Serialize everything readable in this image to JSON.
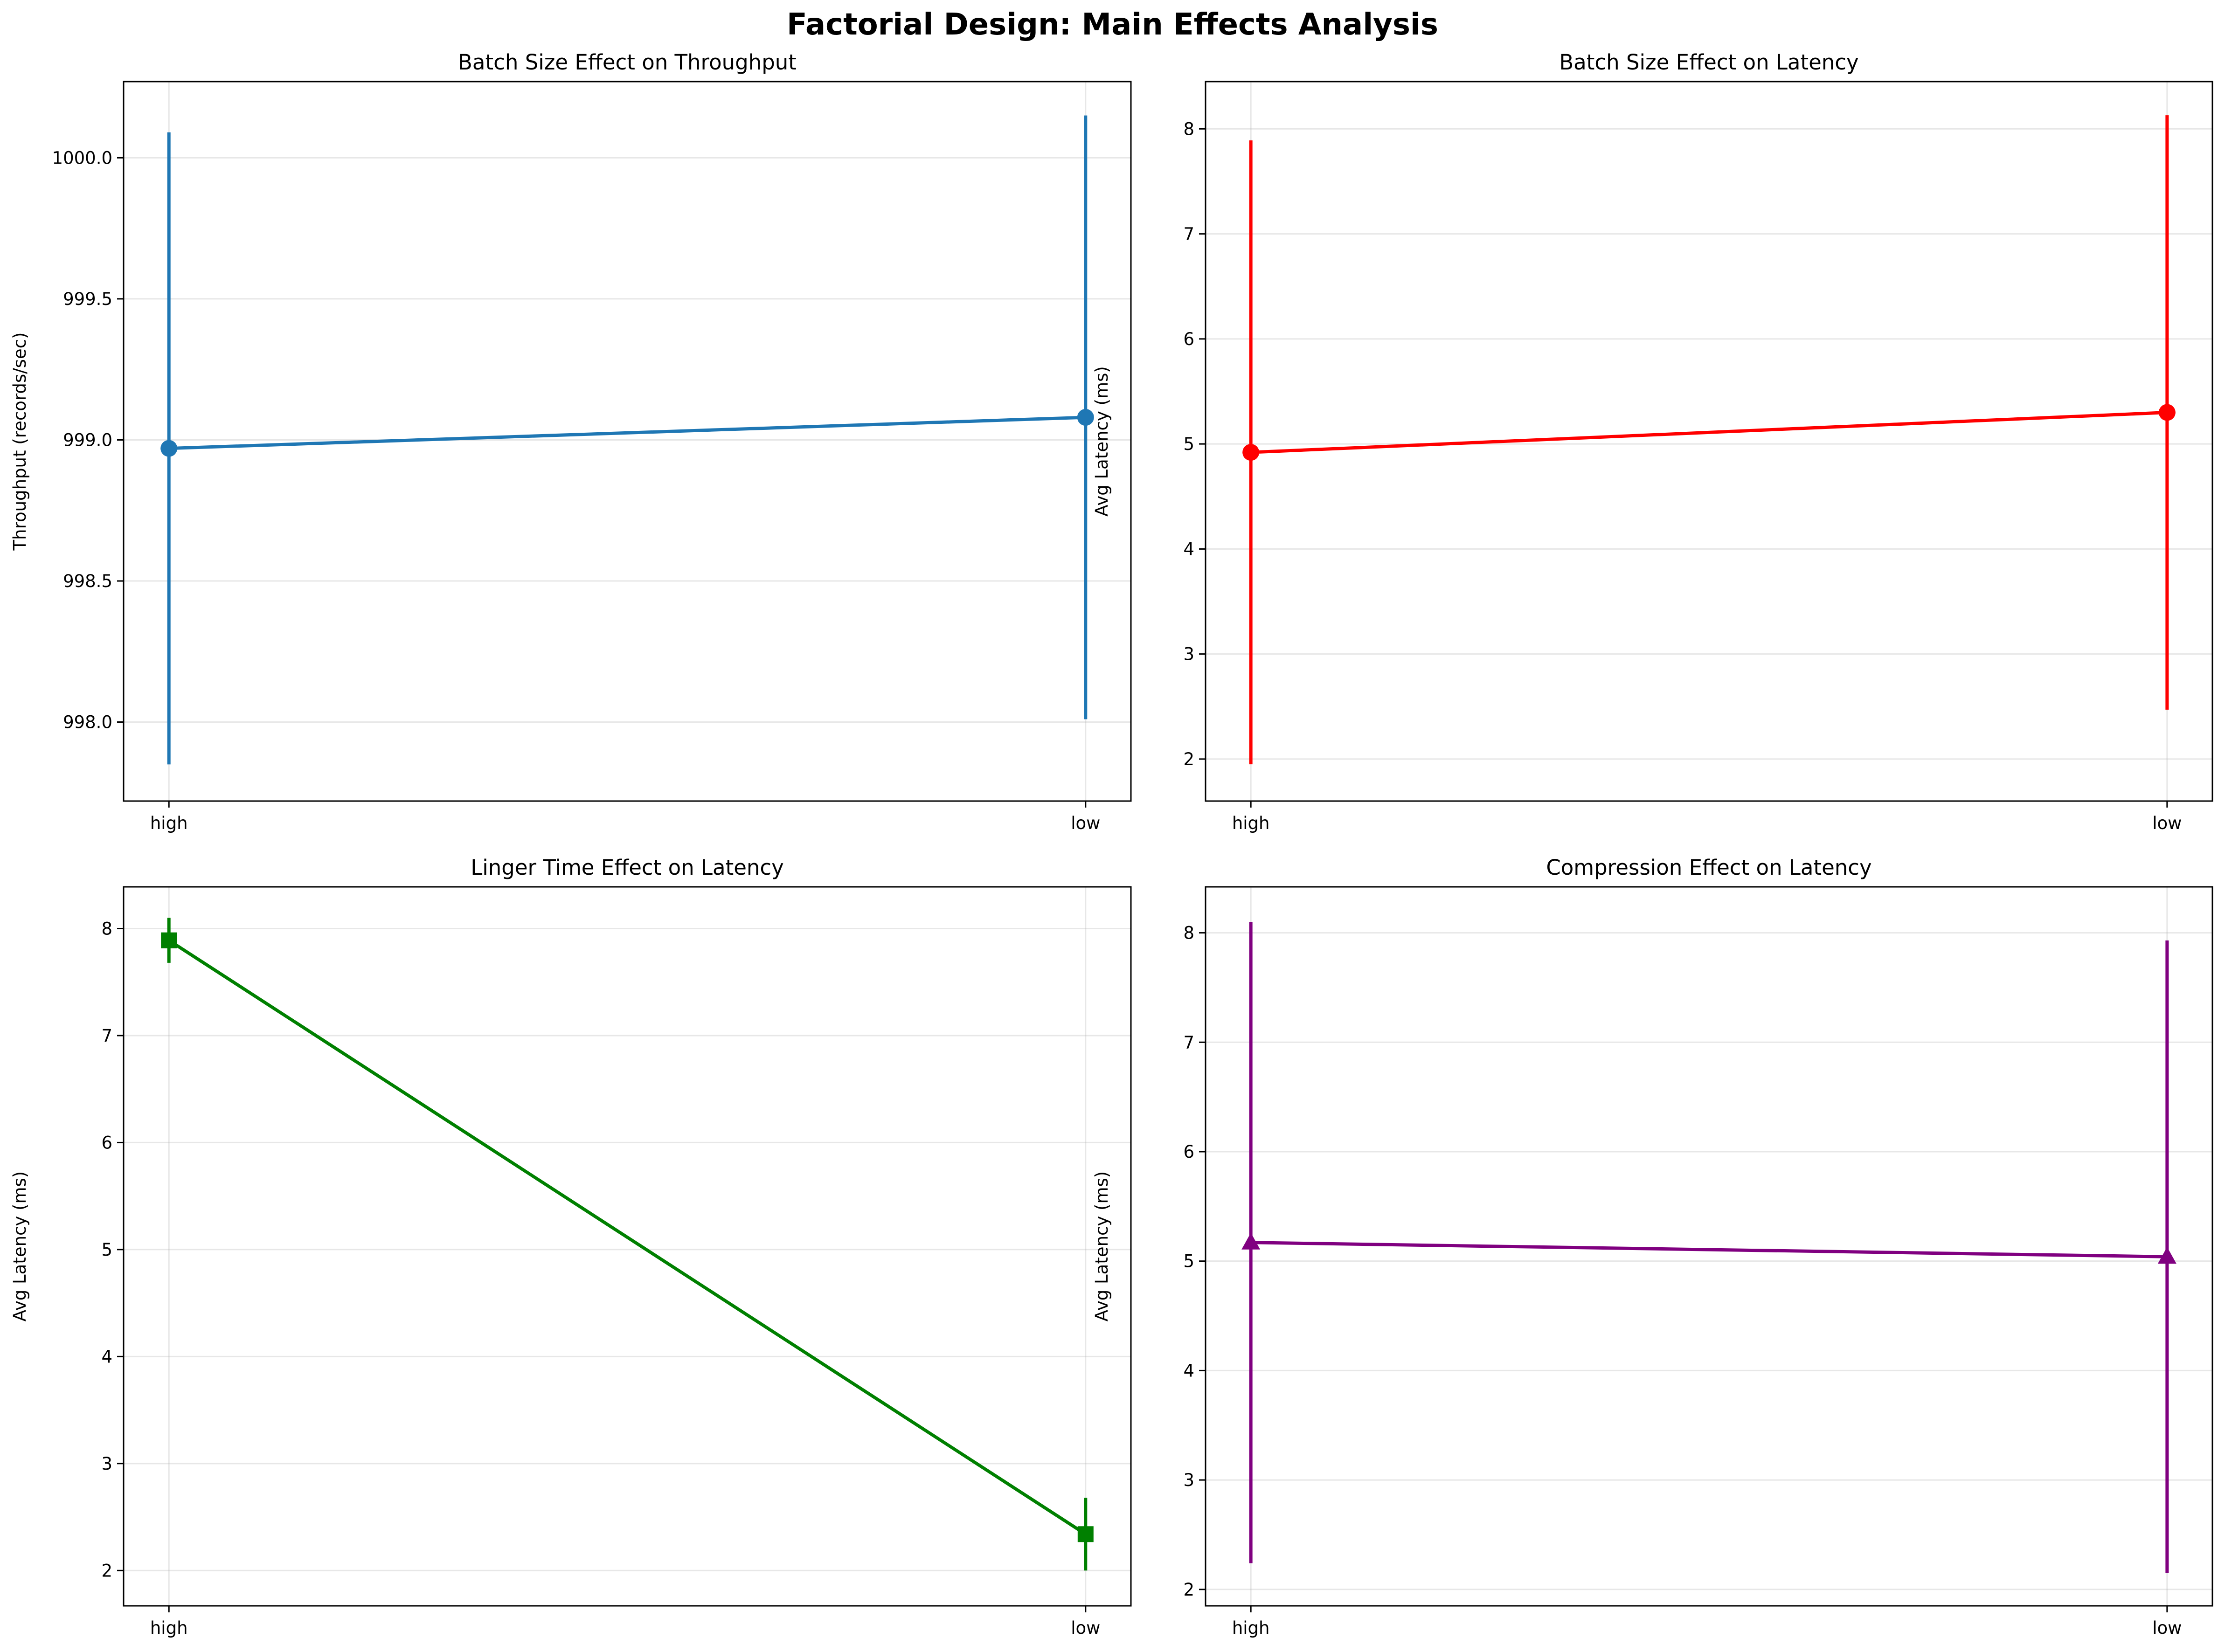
{
  "figure": {
    "title": "Factorial Design: Main Effects Analysis"
  },
  "chart_data": [
    {
      "type": "line",
      "title": "Batch Size Effect on Throughput",
      "xlabel": "",
      "ylabel": "Throughput (records/sec)",
      "categories": [
        "high",
        "low"
      ],
      "ylim": [
        997.72,
        1000.27
      ],
      "yticks": [
        998.0,
        998.5,
        999.0,
        999.5,
        1000.0
      ],
      "ytick_labels": [
        "998.0",
        "998.5",
        "999.0",
        "999.5",
        "1000.0"
      ],
      "grid": true,
      "color": "#1f77b4",
      "marker": "circle",
      "series": [
        {
          "values": [
            998.97,
            999.08
          ],
          "errors": [
            1.12,
            1.07
          ]
        }
      ]
    },
    {
      "type": "line",
      "title": "Batch Size Effect on Latency",
      "xlabel": "",
      "ylabel": "Avg Latency (ms)",
      "categories": [
        "high",
        "low"
      ],
      "ylim": [
        1.6,
        8.45
      ],
      "yticks": [
        2,
        3,
        4,
        5,
        6,
        7,
        8
      ],
      "ytick_labels": [
        "2",
        "3",
        "4",
        "5",
        "6",
        "7",
        "8"
      ],
      "grid": true,
      "color": "#ff0000",
      "marker": "circle",
      "series": [
        {
          "values": [
            4.92,
            5.3
          ],
          "errors": [
            2.97,
            2.83
          ]
        }
      ]
    },
    {
      "type": "line",
      "title": "Linger Time Effect on Latency",
      "xlabel": "",
      "ylabel": "Avg Latency (ms)",
      "categories": [
        "high",
        "low"
      ],
      "ylim": [
        1.67,
        8.39
      ],
      "yticks": [
        2,
        3,
        4,
        5,
        6,
        7,
        8
      ],
      "ytick_labels": [
        "2",
        "3",
        "4",
        "5",
        "6",
        "7",
        "8"
      ],
      "grid": true,
      "color": "#008000",
      "marker": "square",
      "series": [
        {
          "values": [
            7.89,
            2.34
          ],
          "errors": [
            0.21,
            0.34
          ]
        }
      ]
    },
    {
      "type": "line",
      "title": "Compression Effect on Latency",
      "xlabel": "",
      "ylabel": "Avg Latency (ms)",
      "categories": [
        "high",
        "low"
      ],
      "ylim": [
        1.85,
        8.42
      ],
      "yticks": [
        2,
        3,
        4,
        5,
        6,
        7,
        8
      ],
      "ytick_labels": [
        "2",
        "3",
        "4",
        "5",
        "6",
        "7",
        "8"
      ],
      "grid": true,
      "color": "#800080",
      "marker": "triangle",
      "series": [
        {
          "values": [
            5.17,
            5.04
          ],
          "errors": [
            2.93,
            2.89
          ]
        }
      ]
    }
  ]
}
